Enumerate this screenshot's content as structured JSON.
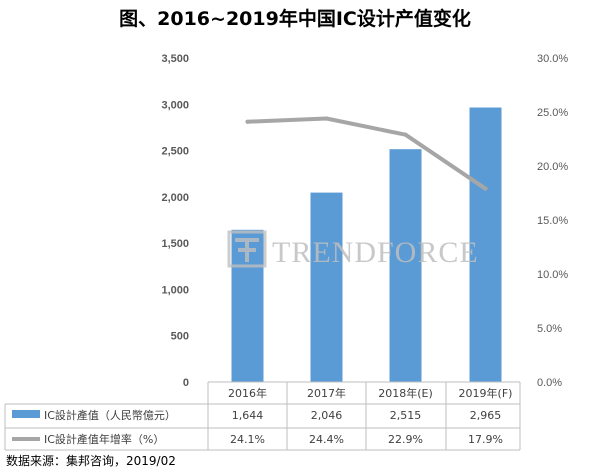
{
  "title": "图、2016~2019年中国IC设计产值变化",
  "source": "数据来源：集邦咨询，2019/02",
  "watermark": "TRENDFORCE",
  "colors": {
    "bar": "#5b9bd5",
    "line": "#a6a6a6",
    "grid": "#bfbfbf",
    "watermark": "#bfbfbf"
  },
  "chart_data": {
    "type": "bar",
    "categories": [
      "2016年",
      "2017年",
      "2018年(E)",
      "2019年(F)"
    ],
    "series": [
      {
        "name": "IC設計產值（人民幣億元）",
        "type": "bar",
        "axis": "left",
        "values": [
          1644,
          2046,
          2515,
          2965
        ],
        "labels": [
          "1,644",
          "2,046",
          "2,515",
          "2,965"
        ]
      },
      {
        "name": "IC設計產值年增率（%）",
        "type": "line",
        "axis": "right",
        "values": [
          24.1,
          24.4,
          22.9,
          17.9
        ],
        "labels": [
          "24.1%",
          "24.4%",
          "22.9%",
          "17.9%"
        ]
      }
    ],
    "ylim": [
      0,
      3500
    ],
    "yticks": [
      "0",
      "500",
      "1,000",
      "1,500",
      "2,000",
      "2,500",
      "3,000",
      "3,500"
    ],
    "y2lim": [
      0,
      30
    ],
    "y2ticks": [
      "0.0%",
      "5.0%",
      "10.0%",
      "15.0%",
      "20.0%",
      "25.0%",
      "30.0%"
    ],
    "legend": "data-table"
  }
}
